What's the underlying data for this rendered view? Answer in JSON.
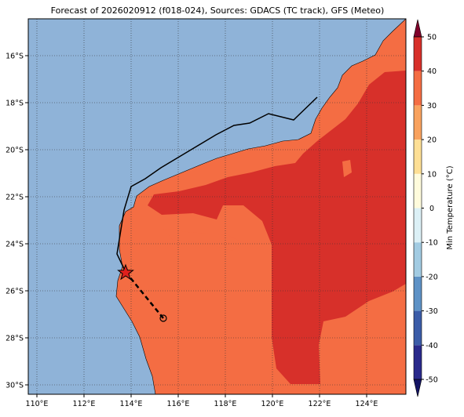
{
  "title": "Forecast of 2026020912 (f018-024), Sources: GDACS (TC track), GFS (Meteo)",
  "map": {
    "lon_ticks": [
      {
        "value": 110,
        "label": "110°E"
      },
      {
        "value": 112,
        "label": "112°E"
      },
      {
        "value": 114,
        "label": "114°E"
      },
      {
        "value": 116,
        "label": "116°E"
      },
      {
        "value": 118,
        "label": "118°E"
      },
      {
        "value": 120,
        "label": "120°E"
      },
      {
        "value": 122,
        "label": "122°E"
      },
      {
        "value": 124,
        "label": "124°E"
      }
    ],
    "lat_ticks": [
      {
        "value": -16,
        "label": "16°S"
      },
      {
        "value": -18,
        "label": "18°S"
      },
      {
        "value": -20,
        "label": "20°S"
      },
      {
        "value": -22,
        "label": "22°S"
      },
      {
        "value": -24,
        "label": "24°S"
      },
      {
        "value": -26,
        "label": "26°S"
      },
      {
        "value": -28,
        "label": "28°S"
      },
      {
        "value": -30,
        "label": "30°S"
      }
    ]
  },
  "colorbar": {
    "label": "Min Temperature (°C)",
    "ticks": [
      -50,
      -40,
      -30,
      -20,
      -10,
      0,
      10,
      20,
      30,
      40,
      50
    ],
    "colors": [
      "#2a2a8c",
      "#3b5ca8",
      "#5e92c6",
      "#a2cbe2",
      "#dcf0f6",
      "#fffbdc",
      "#fedf95",
      "#f9a25e",
      "#f46d43",
      "#d7302a"
    ],
    "under_color": "#141464",
    "over_color": "#80002a"
  }
}
